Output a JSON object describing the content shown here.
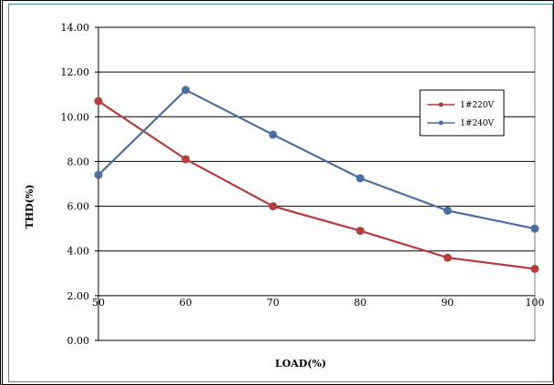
{
  "chart_data": {
    "type": "line",
    "title": "",
    "xlabel": "LOAD(%)",
    "ylabel": "THD(%)",
    "x": [
      50,
      60,
      70,
      80,
      90,
      100
    ],
    "x_tick_labels": [
      "50",
      "60",
      "70",
      "80",
      "90",
      "100"
    ],
    "y_tick_labels": [
      "0.00",
      "2.00",
      "4.00",
      "6.00",
      "8.00",
      "10.00",
      "12.00",
      "14.00"
    ],
    "ylim": [
      0,
      14
    ],
    "xlim": [
      50,
      100
    ],
    "grid": "horizontal",
    "legend_position": "right",
    "series": [
      {
        "name": "1#220V",
        "color": "#b83c3c",
        "values": [
          10.7,
          8.1,
          6.0,
          4.9,
          3.7,
          3.2
        ]
      },
      {
        "name": "1#240V",
        "color": "#4a6fa5",
        "values": [
          7.4,
          11.2,
          9.2,
          7.25,
          5.8,
          5.0
        ]
      }
    ]
  }
}
